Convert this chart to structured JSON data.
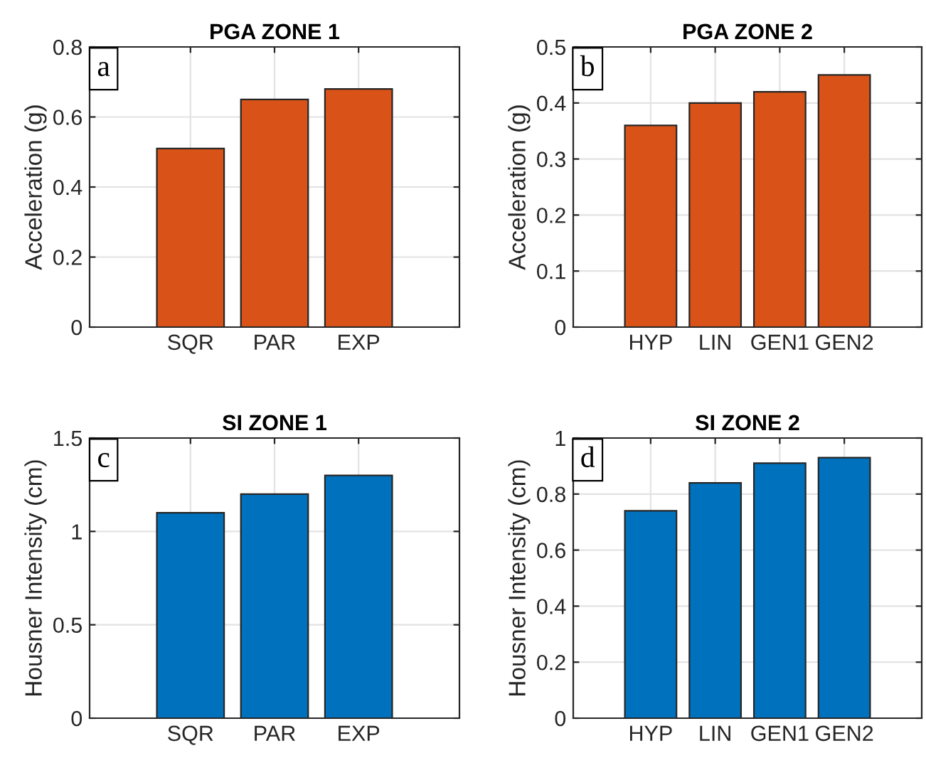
{
  "chart_data": [
    {
      "type": "bar",
      "title": "PGA ZONE 1",
      "ylabel": "Acceleration (g)",
      "categories": [
        "SQR",
        "PAR",
        "EXP"
      ],
      "values": [
        0.51,
        0.65,
        0.68
      ],
      "color": "#d95319",
      "ylim": [
        0,
        0.8
      ],
      "yticks": [
        0,
        0.2,
        0.4,
        0.6,
        0.8
      ],
      "grid": true,
      "annotations": [
        "a"
      ]
    },
    {
      "type": "bar",
      "title": "PGA ZONE 2",
      "ylabel": "Acceleration (g)",
      "categories": [
        "HYP",
        "LIN",
        "GEN1",
        "GEN2"
      ],
      "values": [
        0.36,
        0.4,
        0.42,
        0.45
      ],
      "color": "#d95319",
      "ylim": [
        0,
        0.5
      ],
      "yticks": [
        0,
        0.1,
        0.2,
        0.3,
        0.4,
        0.5
      ],
      "grid": true,
      "annotations": [
        "b"
      ]
    },
    {
      "type": "bar",
      "title": "SI ZONE 1",
      "ylabel": "Housner Intensity (cm)",
      "categories": [
        "SQR",
        "PAR",
        "EXP"
      ],
      "values": [
        1.1,
        1.2,
        1.3
      ],
      "color": "#0072bd",
      "ylim": [
        0,
        1.5
      ],
      "yticks": [
        0,
        0.5,
        1,
        1.5
      ],
      "grid": true,
      "annotations": [
        "c"
      ]
    },
    {
      "type": "bar",
      "title": "SI ZONE 2",
      "ylabel": "Housner Intensity (cm)",
      "categories": [
        "HYP",
        "LIN",
        "GEN1",
        "GEN2"
      ],
      "values": [
        0.74,
        0.84,
        0.91,
        0.93
      ],
      "color": "#0072bd",
      "ylim": [
        0,
        1
      ],
      "yticks": [
        0,
        0.2,
        0.4,
        0.6,
        0.8,
        1
      ],
      "grid": true,
      "annotations": [
        "d"
      ]
    }
  ]
}
